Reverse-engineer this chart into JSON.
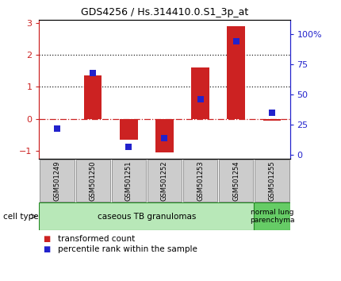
{
  "title": "GDS4256 / Hs.314410.0.S1_3p_at",
  "samples": [
    "GSM501249",
    "GSM501250",
    "GSM501251",
    "GSM501252",
    "GSM501253",
    "GSM501254",
    "GSM501255"
  ],
  "transformed_counts": [
    0.0,
    1.35,
    -0.65,
    -1.05,
    1.6,
    2.9,
    -0.05
  ],
  "percentile_ranks": [
    22,
    68,
    7,
    14,
    46,
    94,
    35
  ],
  "ylim_left": [
    -1.25,
    3.1
  ],
  "ylim_right": [
    -3.0,
    112.0
  ],
  "yticks_left": [
    -1,
    0,
    1,
    2,
    3
  ],
  "yticks_right": [
    0,
    25,
    50,
    75,
    100
  ],
  "ytick_labels_right": [
    "0",
    "25",
    "50",
    "75",
    "100%"
  ],
  "hline_y": [
    0.0,
    1.0,
    2.0
  ],
  "hline_styles": [
    "dashdot",
    "dotted",
    "dotted"
  ],
  "hline_colors": [
    "#cc2222",
    "#222222",
    "#222222"
  ],
  "bar_color": "#cc2222",
  "dot_color": "#2222cc",
  "bar_width": 0.5,
  "dot_size": 30,
  "background_color": "#ffffff",
  "left_axis_color": "#cc2222",
  "right_axis_color": "#2222cc",
  "cell_type_label": "cell type",
  "cell_type_color_1": "#b8e8b8",
  "cell_type_color_2": "#66cc66",
  "cell_type_text_1": "caseous TB granulomas",
  "cell_type_text_2": "normal lung\nparenchyma",
  "legend_bar_label": "transformed count",
  "legend_dot_label": "percentile rank within the sample"
}
